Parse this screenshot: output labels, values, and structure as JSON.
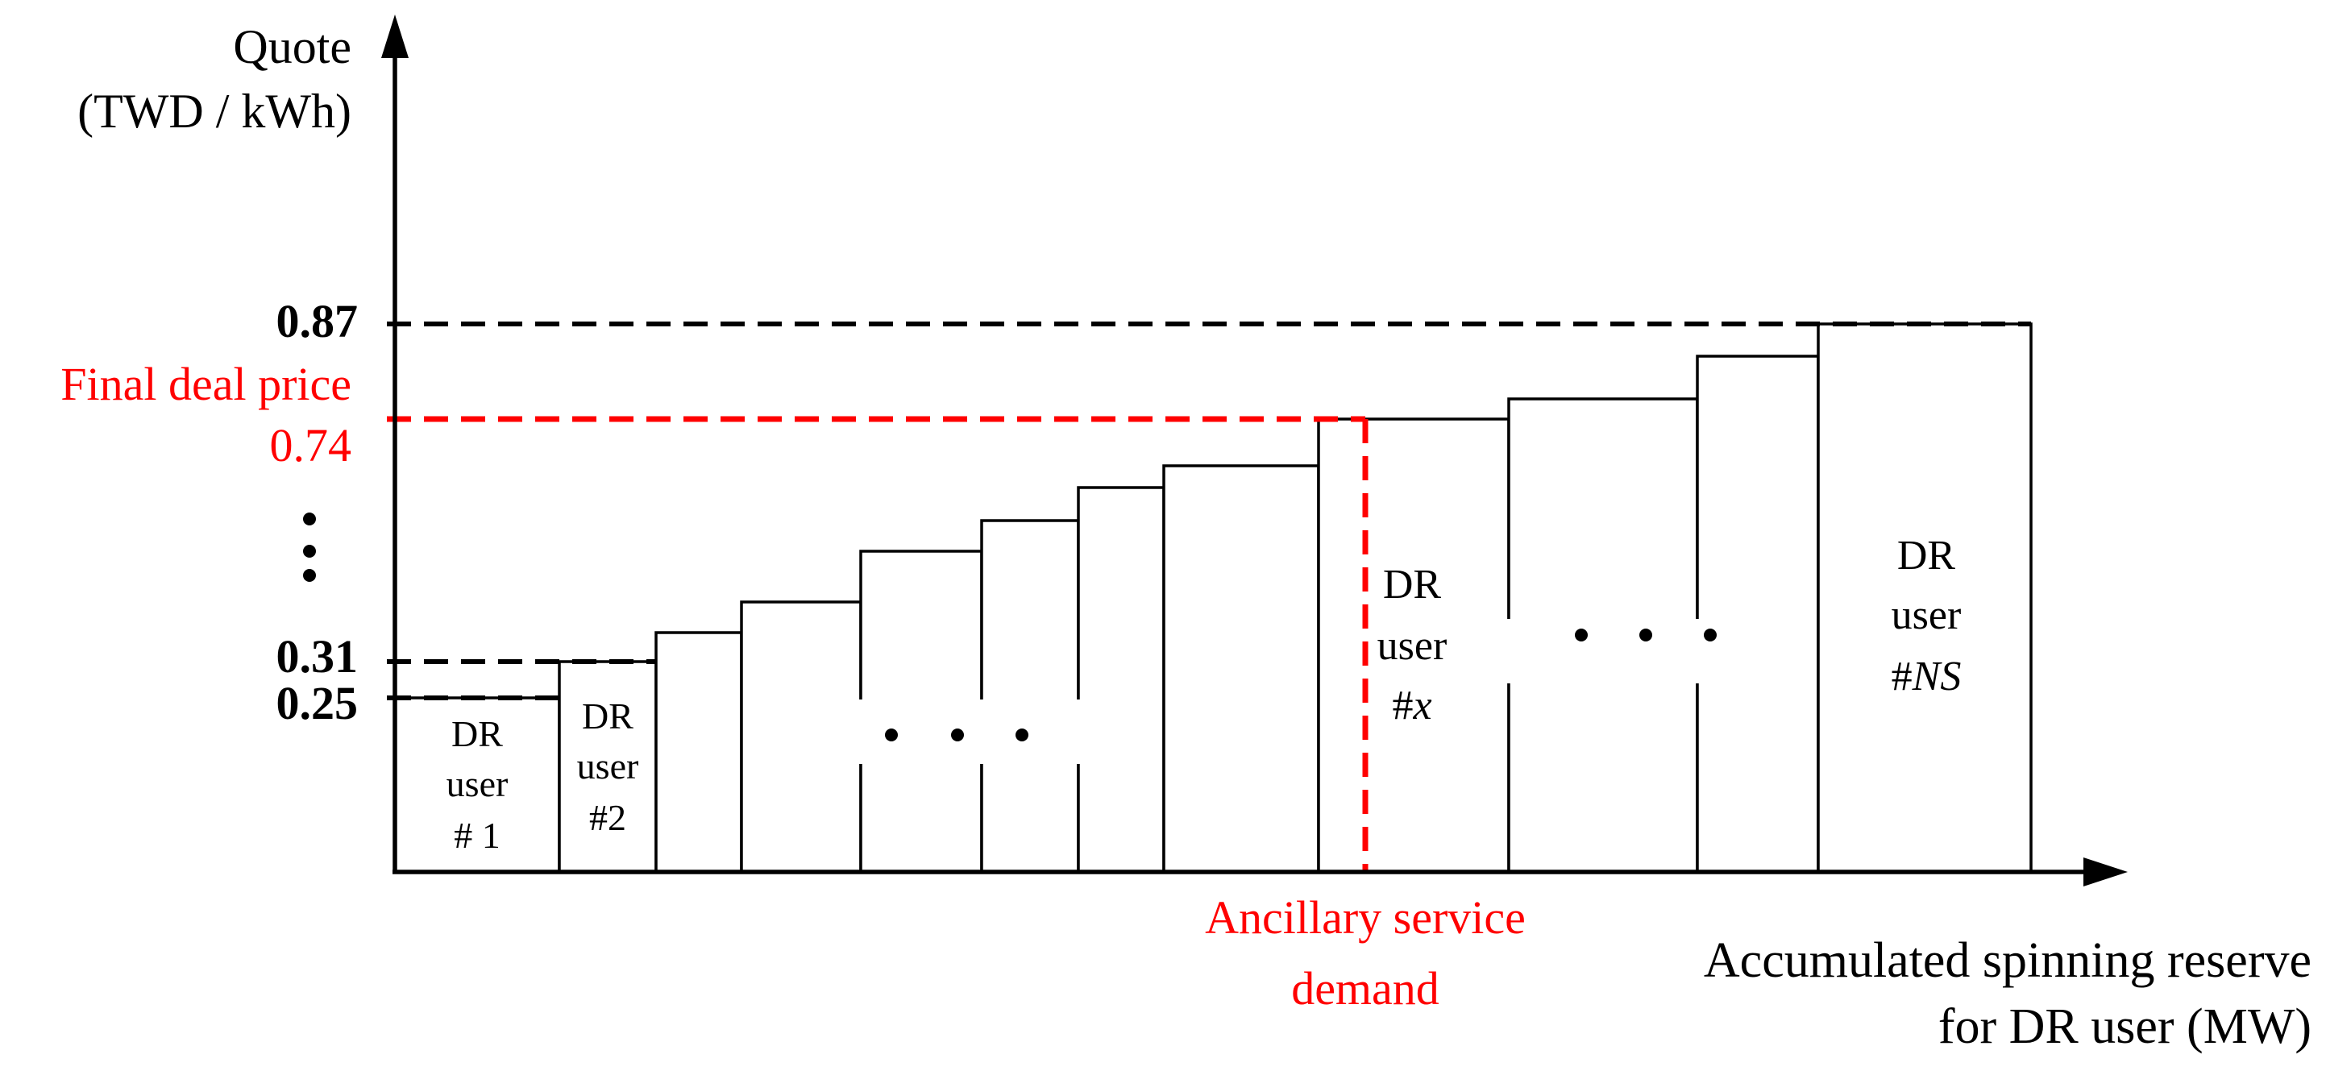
{
  "y_axis_label": [
    "Quote",
    "(TWD / kWh)"
  ],
  "x_axis_label": [
    "Accumulated spinning reserve",
    "for  DR user (MW)"
  ],
  "y_ticks": [
    {
      "label": "0.87",
      "value": 0.87
    },
    {
      "label": "0.31",
      "value": 0.31
    },
    {
      "label": "0.25",
      "value": 0.25
    }
  ],
  "final_price": {
    "label": "Final deal price",
    "value_label": "0.74",
    "value": 0.74
  },
  "demand_label": [
    "Ancillary service",
    "demand"
  ],
  "bar_labels": {
    "user1": [
      "DR",
      "user",
      "# 1"
    ],
    "user2": [
      "DR",
      "user",
      "#2"
    ],
    "userx": [
      "DR",
      "user",
      "#",
      "x"
    ],
    "userns": [
      "DR",
      "user",
      "#",
      "NS"
    ]
  },
  "colors": {
    "highlight": "#ff0000",
    "line": "#000000"
  }
}
